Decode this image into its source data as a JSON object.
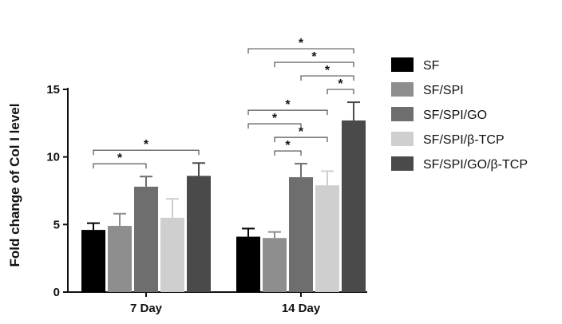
{
  "chart_data": {
    "type": "bar",
    "title": "",
    "xlabel": "",
    "ylabel": "Fold change of Col I level",
    "ylim": [
      0,
      15
    ],
    "yticks": [
      0,
      5,
      10,
      15
    ],
    "categories": [
      "7 Day",
      "14 Day"
    ],
    "series": [
      {
        "name": "SF",
        "color": "#000000",
        "values": [
          4.6,
          4.1
        ],
        "errors": [
          0.5,
          0.6
        ]
      },
      {
        "name": "SF/SPI",
        "color": "#8e8e8e",
        "values": [
          4.9,
          4.0
        ],
        "errors": [
          0.9,
          0.45
        ]
      },
      {
        "name": "SF/SPI/GO",
        "color": "#6e6e6e",
        "values": [
          7.8,
          8.5
        ],
        "errors": [
          0.75,
          1.0
        ]
      },
      {
        "name": "SF/SPI/β-TCP",
        "color": "#cfcfcf",
        "values": [
          5.5,
          7.9
        ],
        "errors": [
          1.4,
          1.05
        ]
      },
      {
        "name": "SF/SPI/GO/β-TCP",
        "color": "#4a4a4a",
        "values": [
          8.6,
          12.7
        ],
        "errors": [
          0.95,
          1.35
        ]
      }
    ],
    "significance": [
      {
        "category": 0,
        "from": 0,
        "to": 2,
        "label": "*"
      },
      {
        "category": 0,
        "from": 0,
        "to": 4,
        "label": "*"
      },
      {
        "category": 1,
        "from": 1,
        "to": 2,
        "label": "*"
      },
      {
        "category": 1,
        "from": 1,
        "to": 3,
        "label": "*"
      },
      {
        "category": 1,
        "from": 0,
        "to": 2,
        "label": "*"
      },
      {
        "category": 1,
        "from": 0,
        "to": 3,
        "label": "*"
      },
      {
        "category": 1,
        "from": 3,
        "to": 4,
        "label": "*"
      },
      {
        "category": 1,
        "from": 2,
        "to": 4,
        "label": "*"
      },
      {
        "category": 1,
        "from": 1,
        "to": 4,
        "label": "*"
      },
      {
        "category": 1,
        "from": 0,
        "to": 4,
        "label": "*"
      }
    ],
    "legend_position": "right"
  }
}
